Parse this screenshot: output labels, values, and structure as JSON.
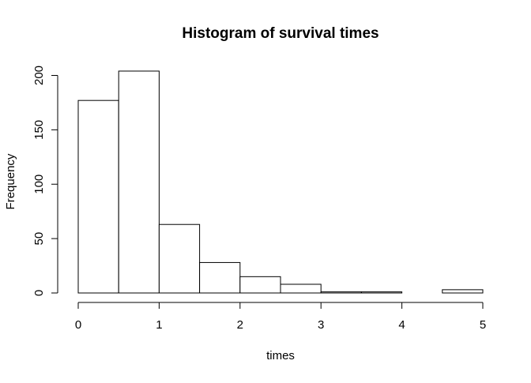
{
  "chart_data": {
    "type": "bar",
    "title": "Histogram of survival times",
    "xlabel": "times",
    "ylabel": "Frequency",
    "bin_edges": [
      0,
      0.5,
      1,
      1.5,
      2,
      2.5,
      3,
      3.5,
      4,
      4.5,
      5
    ],
    "values": [
      177,
      204,
      63,
      28,
      15,
      8,
      1,
      1,
      0,
      3
    ],
    "xlim": [
      0,
      5
    ],
    "ylim": [
      0,
      204
    ],
    "x_ticks": [
      0,
      1,
      2,
      3,
      4,
      5
    ],
    "x_tick_labels": [
      "0",
      "1",
      "2",
      "3",
      "4",
      "5"
    ],
    "y_ticks": [
      0,
      50,
      100,
      150,
      200
    ],
    "y_tick_labels": [
      "0",
      "50",
      "100",
      "150",
      "200"
    ],
    "bar_fill": "#ffffff",
    "bar_stroke": "#000000",
    "grid": false,
    "legend": "none"
  }
}
